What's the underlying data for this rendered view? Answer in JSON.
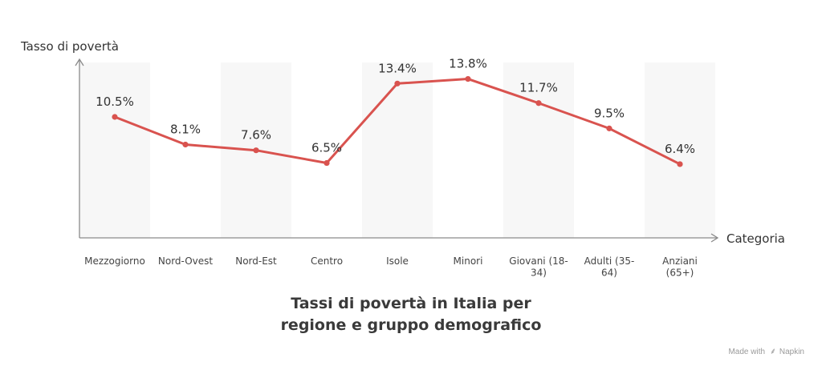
{
  "chart_data": {
    "type": "line",
    "title": "Tassi di povertà in Italia per regione e gruppo demografico",
    "ylabel": "Tasso di povertà",
    "xlabel": "Categoria",
    "categories": [
      "Mezzogiorno",
      "Nord-Ovest",
      "Nord-Est",
      "Centro",
      "Isole",
      "Minori",
      "Giovani (18-34)",
      "Adulti (35-64)",
      "Anziani (65+)"
    ],
    "category_lines": [
      [
        "Mezzogiorno"
      ],
      [
        "Nord-Ovest"
      ],
      [
        "Nord-Est"
      ],
      [
        "Centro"
      ],
      [
        "Isole"
      ],
      [
        "Minori"
      ],
      [
        "Giovani (18-",
        "34)"
      ],
      [
        "Adulti (35-",
        "64)"
      ],
      [
        "Anziani",
        "(65+)"
      ]
    ],
    "values": [
      10.5,
      8.1,
      7.6,
      6.5,
      13.4,
      13.8,
      11.7,
      9.5,
      6.4
    ],
    "value_labels": [
      "10.5%",
      "8.1%",
      "7.6%",
      "6.5%",
      "13.4%",
      "13.8%",
      "11.7%",
      "9.5%",
      "6.4%"
    ],
    "ylim": [
      0,
      16
    ],
    "grid": false,
    "alternating_bands": true,
    "line_color": "#d9534f",
    "band_color": "#f7f7f7",
    "axis_color": "#8a8a8a"
  },
  "title_lines": [
    "Tassi di povertà in Italia per",
    "regione e gruppo demografico"
  ],
  "watermark": {
    "made_with": "Made with",
    "brand": "Napkin",
    "icon": "napkin-logo-icon"
  }
}
